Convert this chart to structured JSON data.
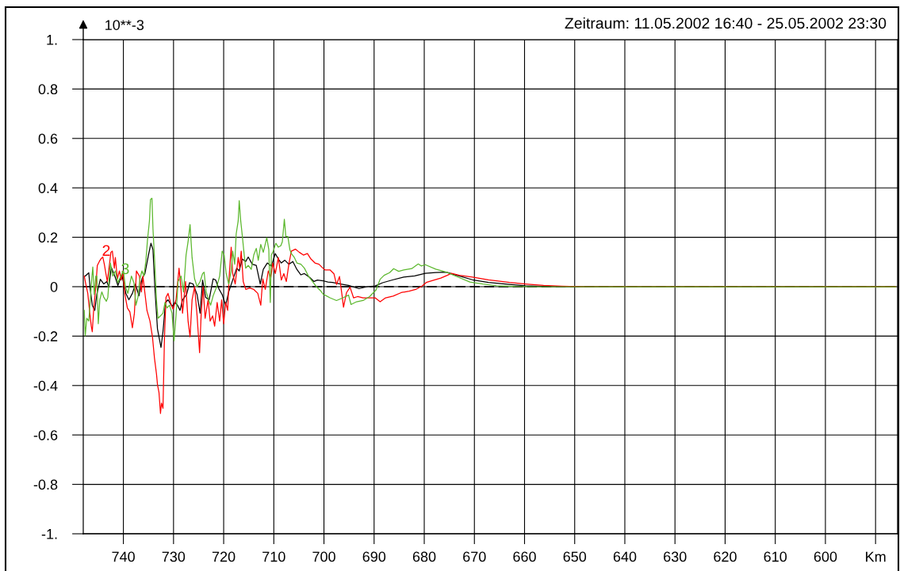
{
  "chart_data": {
    "type": "line",
    "title": "Zeitraum: 11.05.2002 16:40 - 25.05.2002 23:30",
    "ylabel": "10**-3",
    "xlim": [
      748.0,
      585.6
    ],
    "xticks": [
      740,
      730,
      720,
      710,
      700,
      690,
      680,
      670,
      660,
      650,
      640,
      630,
      620,
      610,
      600,
      {
        "value": 590,
        "label": "Km"
      }
    ],
    "ylim": [
      -1,
      1
    ],
    "yticks": [
      {
        "value": 1,
        "label": "1."
      },
      0.8,
      0.6,
      0.4,
      0.2,
      0,
      -0.2,
      -0.4,
      -0.6,
      -0.8,
      {
        "value": -1,
        "label": "-1."
      }
    ],
    "grid": true,
    "line_style": "solid",
    "ref_lines": [
      {
        "axis": "y",
        "value": 0,
        "color": "#000000",
        "line_style": "dashed"
      }
    ],
    "series": [
      {
        "color": "#000000",
        "x": [
          747.6,
          746.9,
          746.6,
          746.2,
          745.7,
          745.3,
          744.6,
          743.9,
          743.3,
          742.9,
          742.4,
          741.6,
          741.1,
          740.3,
          739.5,
          738.9,
          738.2,
          737.6,
          736.9,
          736.3,
          735.7,
          735.0,
          734.5,
          734.1,
          733.7,
          733.2,
          732.5,
          732.1,
          731.6,
          731.1,
          730.3,
          729.7,
          729.2,
          728.7,
          728.2,
          727.4,
          726.8,
          726.1,
          725.3,
          724.7,
          724.2,
          723.6,
          722.9,
          722.1,
          721.6,
          720.9,
          720.3,
          719.6,
          719.0,
          718.2,
          717.4,
          716.9,
          716.3,
          715.6,
          715.1,
          714.3,
          713.5,
          712.7,
          712.1,
          711.3,
          710.5,
          709.7,
          709.1,
          708.5,
          707.8,
          707.0,
          706.2,
          705.4,
          704.6,
          703.9,
          702.8,
          702.0,
          701.3,
          700.2,
          699.2,
          698.3,
          696.7,
          695.1,
          693.0,
          691.4,
          689.8,
          688.3,
          686.2,
          684.1,
          681.9,
          679.8,
          677.7,
          675.6,
          673.5,
          670.4,
          667.2,
          663.0,
          659.8,
          656.2,
          652.5,
          586.0
        ],
        "values": [
          0.043,
          0.056,
          -0.011,
          -0.075,
          -0.096,
          -0.032,
          0.03,
          0.011,
          0.021,
          -0.002,
          0.078,
          0.037,
          0.005,
          0.048,
          -0.027,
          -0.053,
          -0.027,
          0.011,
          -0.037,
          0.032,
          0.053,
          0.128,
          0.176,
          0.15,
          -0.011,
          -0.171,
          -0.246,
          -0.182,
          -0.064,
          -0.053,
          -0.08,
          -0.064,
          -0.075,
          -0.096,
          -0.053,
          -0.032,
          0.016,
          0.011,
          -0.032,
          -0.107,
          0.027,
          -0.043,
          -0.053,
          0.032,
          0.027,
          -0.011,
          -0.032,
          -0.075,
          -0.021,
          0.027,
          0.075,
          0.064,
          0.112,
          0.102,
          0.12,
          0.091,
          0.086,
          0.011,
          0.07,
          0.096,
          0.083,
          0.134,
          0.112,
          0.096,
          0.107,
          0.091,
          0.102,
          0.07,
          0.048,
          0.053,
          0.037,
          0.021,
          0.027,
          0.024,
          0.019,
          0.017,
          0.011,
          0.005,
          -0.008,
          0.0,
          0.003,
          0.016,
          0.028,
          0.039,
          0.044,
          0.054,
          0.057,
          0.059,
          0.046,
          0.028,
          0.017,
          0.009,
          0.004,
          0.001,
          0.0,
          0.0
        ]
      },
      {
        "name": "2",
        "color": "#ff0000",
        "x": [
          747.8,
          747.5,
          747.1,
          746.7,
          746.4,
          746.2,
          745.9,
          745.5,
          745.2,
          744.8,
          744.5,
          744.1,
          743.8,
          743.4,
          743.2,
          742.7,
          742.5,
          742.2,
          741.8,
          741.6,
          741.2,
          740.8,
          740.4,
          740.1,
          739.7,
          739.2,
          738.7,
          738.2,
          737.8,
          737.4,
          736.8,
          736.4,
          736.1,
          735.7,
          735.3,
          734.7,
          734.2,
          733.8,
          733.4,
          733.2,
          732.9,
          732.6,
          732.4,
          732.1,
          731.8,
          731.5,
          731.1,
          730.6,
          730.1,
          729.5,
          728.9,
          728.5,
          728.2,
          727.6,
          727.1,
          726.7,
          726.3,
          725.8,
          725.3,
          724.8,
          724.5,
          724.1,
          723.7,
          723.1,
          722.7,
          722.2,
          721.8,
          721.3,
          720.8,
          720.4,
          720.0,
          719.6,
          719.2,
          718.9,
          718.5,
          718.2,
          717.7,
          717.1,
          716.8,
          716.5,
          716.1,
          715.6,
          714.8,
          714.0,
          713.2,
          712.6,
          712.2,
          711.7,
          711.1,
          710.6,
          710.2,
          709.7,
          709.1,
          708.5,
          708.0,
          707.5,
          707.0,
          706.5,
          705.7,
          704.9,
          704.1,
          703.3,
          702.6,
          701.8,
          701.0,
          700.2,
          699.8,
          698.8,
          698.0,
          697.5,
          696.9,
          696.4,
          696.1,
          695.5,
          694.8,
          694.1,
          693.3,
          692.2,
          691.2,
          689.8,
          688.8,
          687.7,
          686.2,
          684.6,
          683.0,
          681.7,
          680.4,
          679.6,
          678.3,
          676.7,
          675.4,
          674.6,
          673.0,
          670.4,
          667.2,
          663.0,
          659.8,
          656.2,
          652.5,
          648.0,
          586.0
        ],
        "values": [
          0.043,
          0.011,
          -0.027,
          -0.107,
          -0.16,
          -0.182,
          -0.086,
          0.0,
          0.086,
          0.102,
          0.112,
          0.12,
          0.091,
          0.043,
          0.021,
          0.102,
          0.139,
          0.144,
          0.075,
          0.118,
          0.032,
          0.064,
          0.027,
          0.064,
          -0.032,
          -0.086,
          -0.102,
          -0.166,
          -0.107,
          0.064,
          0.043,
          -0.021,
          0.043,
          -0.027,
          -0.096,
          -0.139,
          -0.203,
          -0.289,
          -0.353,
          -0.396,
          -0.428,
          -0.513,
          -0.471,
          -0.492,
          -0.203,
          -0.043,
          -0.027,
          -0.064,
          -0.091,
          -0.053,
          0.075,
          -0.011,
          -0.107,
          0.021,
          -0.139,
          -0.203,
          -0.053,
          0.0,
          -0.118,
          -0.267,
          -0.118,
          0.0,
          -0.128,
          -0.053,
          -0.139,
          -0.118,
          -0.16,
          -0.064,
          -0.139,
          -0.053,
          -0.15,
          -0.064,
          -0.096,
          0.043,
          0.16,
          0.053,
          0.011,
          0.118,
          0.075,
          0.144,
          0.021,
          -0.011,
          -0.005,
          -0.011,
          -0.027,
          -0.075,
          0.032,
          -0.011,
          0.064,
          0.037,
          0.096,
          0.053,
          0.118,
          0.027,
          0.053,
          0.021,
          0.091,
          0.144,
          0.152,
          0.139,
          0.128,
          0.134,
          0.112,
          0.096,
          0.091,
          0.075,
          0.068,
          0.068,
          0.052,
          0.009,
          0.041,
          -0.034,
          -0.083,
          -0.024,
          -0.002,
          -0.045,
          -0.04,
          -0.045,
          -0.045,
          -0.045,
          -0.061,
          -0.045,
          -0.038,
          -0.024,
          -0.018,
          -0.011,
          0.003,
          0.017,
          0.025,
          0.035,
          0.046,
          0.054,
          0.046,
          0.039,
          0.028,
          0.017,
          0.011,
          0.005,
          0.002,
          0.0,
          0.0
        ]
      },
      {
        "name": "3",
        "color": "#5cb82e",
        "x": [
          747.8,
          747.6,
          747.3,
          746.9,
          746.6,
          746.3,
          746.1,
          745.8,
          745.5,
          745.3,
          745.0,
          744.7,
          744.3,
          743.9,
          743.4,
          743.1,
          742.6,
          742.1,
          741.6,
          741.1,
          740.5,
          740.0,
          739.6,
          739.1,
          738.4,
          737.9,
          737.5,
          737.1,
          736.7,
          736.3,
          735.9,
          735.5,
          735.2,
          734.8,
          734.6,
          734.3,
          734.1,
          733.8,
          733.4,
          733.1,
          732.6,
          732.1,
          731.7,
          731.3,
          730.8,
          730.3,
          729.9,
          729.5,
          729.1,
          728.5,
          728.0,
          727.5,
          727.1,
          726.7,
          726.3,
          725.8,
          725.3,
          724.7,
          724.2,
          723.9,
          723.5,
          723.0,
          722.6,
          722.1,
          721.3,
          720.8,
          720.3,
          719.9,
          719.5,
          719.0,
          718.5,
          718.2,
          717.8,
          717.5,
          717.1,
          716.9,
          716.6,
          716.3,
          715.9,
          715.6,
          715.1,
          714.5,
          714.0,
          713.5,
          713.1,
          712.6,
          712.1,
          711.4,
          711.0,
          710.7,
          710.5,
          710.1,
          709.6,
          709.1,
          708.6,
          708.3,
          707.9,
          707.6,
          707.2,
          706.8,
          706.5,
          705.9,
          705.4,
          704.6,
          703.9,
          703.1,
          702.3,
          701.5,
          700.7,
          700.1,
          699.8,
          698.8,
          697.5,
          696.2,
          695.1,
          694.6,
          693.5,
          692.2,
          690.9,
          689.6,
          688.8,
          688.0,
          686.9,
          686.1,
          685.1,
          684.1,
          682.5,
          681.2,
          680.6,
          679.8,
          677.7,
          675.6,
          673.5,
          670.9,
          668.3,
          665.6,
          661.9,
          657.7,
          586.0
        ],
        "values": [
          -0.096,
          -0.198,
          -0.128,
          -0.139,
          -0.053,
          0.032,
          0.08,
          -0.032,
          0.043,
          0.043,
          -0.15,
          -0.053,
          -0.021,
          -0.043,
          -0.059,
          -0.043,
          0.096,
          0.043,
          0.064,
          0.016,
          0.043,
          0.064,
          0.0,
          -0.027,
          0.043,
          0.016,
          -0.075,
          -0.043,
          0.032,
          0.064,
          0.043,
          0.107,
          0.187,
          0.267,
          0.353,
          0.358,
          0.235,
          0.118,
          -0.053,
          -0.128,
          -0.118,
          -0.107,
          -0.064,
          -0.086,
          -0.075,
          -0.107,
          -0.219,
          -0.118,
          0.021,
          0.043,
          -0.021,
          0.128,
          0.182,
          0.251,
          0.118,
          0.032,
          0.0,
          0.021,
          0.053,
          0.059,
          -0.021,
          -0.053,
          -0.075,
          -0.037,
          0.005,
          0.043,
          0.144,
          0.128,
          0.053,
          0.011,
          0.064,
          0.144,
          0.091,
          0.214,
          0.267,
          0.348,
          0.267,
          0.209,
          0.128,
          0.075,
          0.086,
          0.07,
          0.128,
          0.155,
          0.107,
          0.171,
          0.139,
          0.198,
          0.15,
          -0.064,
          0.128,
          0.144,
          0.176,
          0.16,
          0.166,
          0.182,
          0.273,
          0.203,
          0.203,
          0.15,
          0.134,
          0.118,
          0.096,
          0.091,
          0.075,
          0.043,
          0.021,
          0.0,
          -0.016,
          -0.032,
          -0.034,
          -0.045,
          -0.056,
          -0.045,
          -0.034,
          -0.072,
          -0.061,
          -0.056,
          -0.04,
          -0.013,
          0.03,
          0.046,
          0.057,
          0.073,
          0.062,
          0.068,
          0.073,
          0.092,
          0.084,
          0.089,
          0.071,
          0.059,
          0.041,
          0.019,
          0.011,
          0.004,
          0.001,
          0.0,
          0.0
        ]
      }
    ]
  }
}
